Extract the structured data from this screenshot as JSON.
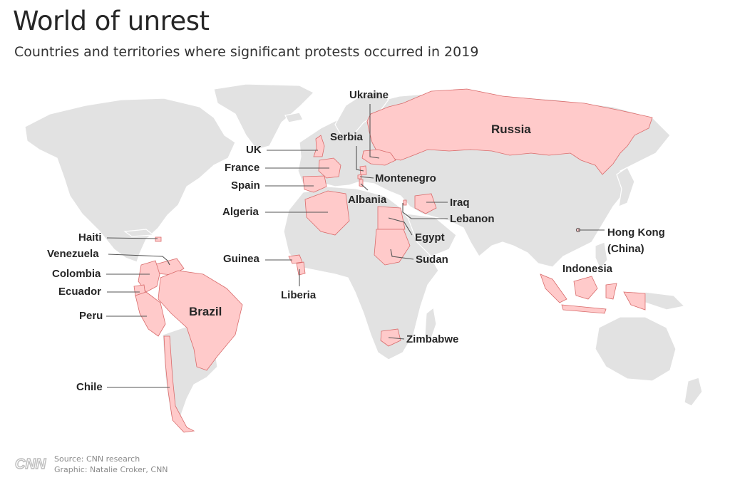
{
  "title": "World of unrest",
  "subtitle": "Countries and territories where significant protests occurred in 2019",
  "colors": {
    "land": "#e2e2e2",
    "highlight": "#ffcaca",
    "highlight_border": "#d96b6b",
    "leader": "#555555"
  },
  "labels": [
    {
      "id": "ukraine",
      "text": "Ukraine"
    },
    {
      "id": "russia",
      "text": "Russia"
    },
    {
      "id": "serbia",
      "text": "Serbia"
    },
    {
      "id": "uk",
      "text": "UK"
    },
    {
      "id": "france",
      "text": "France"
    },
    {
      "id": "spain",
      "text": "Spain"
    },
    {
      "id": "montenegro",
      "text": "Montenegro"
    },
    {
      "id": "albania",
      "text": "Albania"
    },
    {
      "id": "iraq",
      "text": "Iraq"
    },
    {
      "id": "lebanon",
      "text": "Lebanon"
    },
    {
      "id": "algeria",
      "text": "Algeria"
    },
    {
      "id": "egypt",
      "text": "Egypt"
    },
    {
      "id": "sudan",
      "text": "Sudan"
    },
    {
      "id": "hongkong",
      "text": "Hong Kong\n(China)"
    },
    {
      "id": "indonesia",
      "text": "Indonesia"
    },
    {
      "id": "guinea",
      "text": "Guinea"
    },
    {
      "id": "liberia",
      "text": "Liberia"
    },
    {
      "id": "zimbabwe",
      "text": "Zimbabwe"
    },
    {
      "id": "haiti",
      "text": "Haiti"
    },
    {
      "id": "venezuela",
      "text": "Venezuela"
    },
    {
      "id": "colombia",
      "text": "Colombia"
    },
    {
      "id": "ecuador",
      "text": "Ecuador"
    },
    {
      "id": "peru",
      "text": "Peru"
    },
    {
      "id": "brazil",
      "text": "Brazil"
    },
    {
      "id": "chile",
      "text": "Chile"
    }
  ],
  "credits": {
    "logo": "CNN",
    "source": "Source: CNN research",
    "graphic": "Graphic: Natalie Croker, CNN"
  }
}
